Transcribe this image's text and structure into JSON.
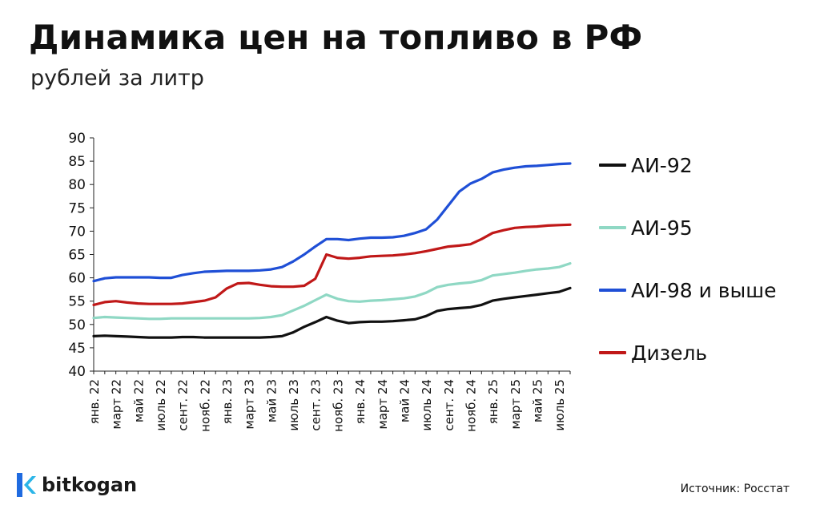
{
  "header": {
    "title": "Динамика цен на топливо в РФ",
    "subtitle": "рублей за литр"
  },
  "footer": {
    "brand": "bitkogan",
    "source": "Источник: Росстат"
  },
  "colors": {
    "ai92": "#111111",
    "ai95": "#8fd8c4",
    "ai98": "#1f4fd6",
    "diesel": "#c01818"
  },
  "chart_data": {
    "type": "line",
    "title": "Динамика цен на топливо в РФ",
    "subtitle": "рублей за литр",
    "ylim": [
      40,
      90
    ],
    "yticks": [
      40,
      45,
      50,
      55,
      60,
      65,
      70,
      75,
      80,
      85,
      90
    ],
    "x_unit": "month",
    "x_start": "2022-01",
    "x_tick_labels": [
      "янв. 22",
      "март 22",
      "май 22",
      "июль 22",
      "сент. 22",
      "нояб. 22",
      "янв. 23",
      "март 23",
      "май 23",
      "июль 23",
      "сент. 23",
      "нояб. 23",
      "янв. 24",
      "март 24",
      "май 24",
      "июль 24",
      "сент. 24",
      "нояб. 24",
      "янв. 25",
      "март 25",
      "май 25",
      "июль 25"
    ],
    "categories": [
      "2022-01",
      "2022-02",
      "2022-03",
      "2022-04",
      "2022-05",
      "2022-06",
      "2022-07",
      "2022-08",
      "2022-09",
      "2022-10",
      "2022-11",
      "2022-12",
      "2023-01",
      "2023-02",
      "2023-03",
      "2023-04",
      "2023-05",
      "2023-06",
      "2023-07",
      "2023-08",
      "2023-09",
      "2023-10",
      "2023-11",
      "2023-12",
      "2024-01",
      "2024-02",
      "2024-03",
      "2024-04",
      "2024-05",
      "2024-06",
      "2024-07",
      "2024-08",
      "2024-09",
      "2024-10",
      "2024-11",
      "2024-12",
      "2025-01",
      "2025-02",
      "2025-03",
      "2025-04",
      "2025-05",
      "2025-06",
      "2025-07",
      "2025-08"
    ],
    "legend_position": "right",
    "grid": false,
    "series": [
      {
        "name": "АИ-92",
        "color_key": "ai92",
        "values": [
          47.5,
          47.6,
          47.5,
          47.4,
          47.3,
          47.2,
          47.2,
          47.2,
          47.3,
          47.3,
          47.2,
          47.2,
          47.2,
          47.2,
          47.2,
          47.2,
          47.3,
          47.5,
          48.3,
          49.5,
          50.5,
          51.6,
          50.8,
          50.3,
          50.5,
          50.6,
          50.6,
          50.7,
          50.9,
          51.1,
          51.8,
          52.9,
          53.3,
          53.5,
          53.7,
          54.2,
          55.1,
          55.5,
          55.8,
          56.1,
          56.4,
          56.7,
          57.0,
          57.8
        ]
      },
      {
        "name": "АИ-95",
        "color_key": "ai95",
        "values": [
          51.4,
          51.6,
          51.5,
          51.4,
          51.3,
          51.2,
          51.2,
          51.3,
          51.3,
          51.3,
          51.3,
          51.3,
          51.3,
          51.3,
          51.3,
          51.4,
          51.6,
          52.0,
          53.0,
          54.0,
          55.2,
          56.4,
          55.5,
          55.0,
          54.9,
          55.1,
          55.2,
          55.4,
          55.6,
          56.0,
          56.8,
          58.0,
          58.5,
          58.8,
          59.0,
          59.5,
          60.5,
          60.8,
          61.1,
          61.5,
          61.8,
          62.0,
          62.3,
          63.1
        ]
      },
      {
        "name": "АИ-98 и выше",
        "color_key": "ai98",
        "values": [
          59.3,
          59.9,
          60.1,
          60.1,
          60.1,
          60.1,
          60.0,
          60.0,
          60.6,
          61.0,
          61.3,
          61.4,
          61.5,
          61.5,
          61.5,
          61.6,
          61.8,
          62.3,
          63.5,
          65.0,
          66.7,
          68.3,
          68.3,
          68.1,
          68.4,
          68.6,
          68.6,
          68.7,
          69.0,
          69.6,
          70.4,
          72.5,
          75.5,
          78.5,
          80.2,
          81.2,
          82.6,
          83.2,
          83.6,
          83.9,
          84.0,
          84.2,
          84.4,
          84.5
        ]
      },
      {
        "name": "Дизель",
        "color_key": "diesel",
        "values": [
          54.2,
          54.8,
          55.0,
          54.7,
          54.5,
          54.4,
          54.4,
          54.4,
          54.5,
          54.8,
          55.1,
          55.8,
          57.7,
          58.8,
          58.9,
          58.5,
          58.2,
          58.1,
          58.1,
          58.3,
          59.8,
          65.0,
          64.3,
          64.1,
          64.3,
          64.6,
          64.7,
          64.8,
          65.0,
          65.3,
          65.7,
          66.2,
          66.7,
          66.9,
          67.2,
          68.3,
          69.6,
          70.2,
          70.7,
          70.9,
          71.0,
          71.2,
          71.3,
          71.4
        ]
      }
    ]
  }
}
